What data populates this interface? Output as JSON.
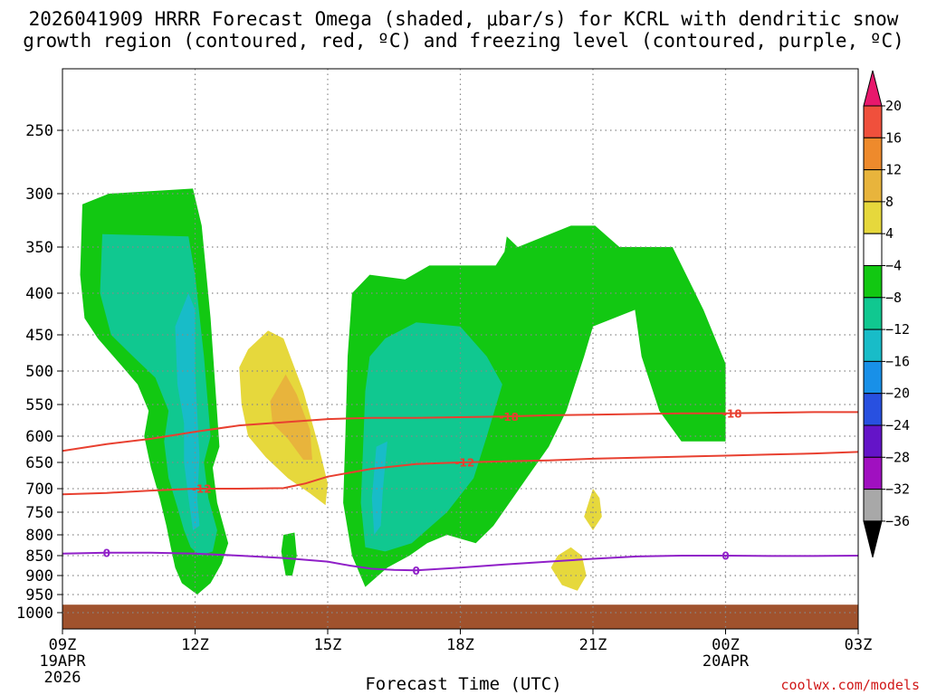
{
  "chart_data": {
    "type": "heatmap",
    "title_line1": "2026041909 HRRR Forecast Omega (shaded, μbar/s) for KCRL with dendritic snow",
    "title_line2": "growth region (contoured, red, ºC) and freezing level (contoured, purple, ºC)",
    "xlabel": "Forecast Time (UTC)",
    "credit": "coolwx.com/models",
    "x_range_hours": [
      0,
      18
    ],
    "y_range_hpa": [
      1000,
      200
    ],
    "x_ticks": [
      {
        "hour": 0,
        "label": "09Z",
        "sub1": "19APR",
        "sub2": "2026"
      },
      {
        "hour": 3,
        "label": "12Z",
        "sub1": "",
        "sub2": ""
      },
      {
        "hour": 6,
        "label": "15Z",
        "sub1": "",
        "sub2": ""
      },
      {
        "hour": 9,
        "label": "18Z",
        "sub1": "",
        "sub2": ""
      },
      {
        "hour": 12,
        "label": "21Z",
        "sub1": "",
        "sub2": ""
      },
      {
        "hour": 15,
        "label": "00Z",
        "sub1": "20APR",
        "sub2": ""
      },
      {
        "hour": 18,
        "label": "03Z",
        "sub1": "",
        "sub2": ""
      }
    ],
    "y_ticks": [
      250,
      300,
      350,
      400,
      450,
      500,
      550,
      600,
      650,
      700,
      750,
      800,
      850,
      900,
      950,
      1000
    ],
    "colorbar": {
      "levels": [
        {
          "label": "20",
          "color": "#e8186c"
        },
        {
          "label": "16",
          "color": "#f0503c"
        },
        {
          "label": "12",
          "color": "#ee8a2c"
        },
        {
          "label": "8",
          "color": "#e8b43c"
        },
        {
          "label": "4",
          "color": "#e6d83c"
        },
        {
          "label": "−4",
          "color": "#ffffff"
        },
        {
          "label": "−8",
          "color": "#12c812"
        },
        {
          "label": "−12",
          "color": "#10c890"
        },
        {
          "label": "−16",
          "color": "#18bcc8"
        },
        {
          "label": "−20",
          "color": "#1890e8"
        },
        {
          "label": "−24",
          "color": "#2850e0"
        },
        {
          "label": "−28",
          "color": "#6414c8"
        },
        {
          "label": "−32",
          "color": "#a010c0"
        },
        {
          "label": "−36",
          "color": "#a8a8a8"
        }
      ],
      "bottom_color": "#000000"
    },
    "omega_regions": [
      {
        "name": "left-green-plume",
        "level": "-4 to -8",
        "color": "#12c812",
        "points": [
          [
            0.45,
            310
          ],
          [
            1.05,
            300
          ],
          [
            2.95,
            296
          ],
          [
            3.15,
            330
          ],
          [
            3.35,
            430
          ],
          [
            3.55,
            620
          ],
          [
            3.4,
            660
          ],
          [
            3.5,
            730
          ],
          [
            3.75,
            820
          ],
          [
            3.6,
            870
          ],
          [
            3.35,
            920
          ],
          [
            3.05,
            950
          ],
          [
            2.7,
            920
          ],
          [
            2.55,
            880
          ],
          [
            2.45,
            830
          ],
          [
            2.35,
            780
          ],
          [
            2.2,
            720
          ],
          [
            2.0,
            660
          ],
          [
            1.85,
            600
          ],
          [
            1.95,
            560
          ],
          [
            1.7,
            520
          ],
          [
            1.3,
            490
          ],
          [
            0.8,
            455
          ],
          [
            0.5,
            430
          ],
          [
            0.4,
            380
          ]
        ]
      },
      {
        "name": "left-cyan-core",
        "level": "-8 to -12",
        "color": "#10c890",
        "points": [
          [
            0.9,
            338
          ],
          [
            2.85,
            340
          ],
          [
            3.0,
            380
          ],
          [
            3.2,
            480
          ],
          [
            3.35,
            600
          ],
          [
            3.2,
            650
          ],
          [
            3.3,
            720
          ],
          [
            3.5,
            790
          ],
          [
            3.4,
            840
          ],
          [
            3.1,
            850
          ],
          [
            2.9,
            830
          ],
          [
            2.75,
            790
          ],
          [
            2.6,
            740
          ],
          [
            2.4,
            680
          ],
          [
            2.3,
            610
          ],
          [
            2.4,
            560
          ],
          [
            2.1,
            510
          ],
          [
            1.6,
            480
          ],
          [
            1.1,
            450
          ],
          [
            0.85,
            400
          ]
        ]
      },
      {
        "name": "left-blue-streak",
        "level": "-12 to -16",
        "color": "#18bcc8",
        "points": [
          [
            2.55,
            440
          ],
          [
            2.85,
            400
          ],
          [
            3.0,
            420
          ],
          [
            3.0,
            500
          ],
          [
            3.1,
            640
          ],
          [
            3.05,
            720
          ],
          [
            3.1,
            780
          ],
          [
            2.95,
            790
          ],
          [
            2.85,
            720
          ],
          [
            2.75,
            650
          ],
          [
            2.75,
            580
          ],
          [
            2.6,
            520
          ]
        ]
      },
      {
        "name": "small-green-blob",
        "level": "-4 to -8",
        "color": "#12c812",
        "points": [
          [
            5.0,
            800
          ],
          [
            5.25,
            795
          ],
          [
            5.3,
            850
          ],
          [
            5.2,
            900
          ],
          [
            5.05,
            900
          ],
          [
            4.95,
            840
          ]
        ]
      },
      {
        "name": "yellow-blob",
        "level": "4 to 8",
        "color": "#e6d83c",
        "points": [
          [
            4.0,
            495
          ],
          [
            4.2,
            470
          ],
          [
            4.65,
            445
          ],
          [
            5.0,
            455
          ],
          [
            5.45,
            530
          ],
          [
            5.8,
            620
          ],
          [
            6.0,
            690
          ],
          [
            5.95,
            735
          ],
          [
            5.6,
            710
          ],
          [
            5.1,
            680
          ],
          [
            4.6,
            640
          ],
          [
            4.2,
            600
          ],
          [
            4.05,
            550
          ]
        ]
      },
      {
        "name": "orange-core",
        "level": "8 to 12",
        "color": "#e8b43c",
        "points": [
          [
            4.7,
            545
          ],
          [
            5.05,
            505
          ],
          [
            5.3,
            535
          ],
          [
            5.6,
            590
          ],
          [
            5.65,
            645
          ],
          [
            5.45,
            645
          ],
          [
            5.1,
            605
          ],
          [
            4.75,
            580
          ]
        ]
      },
      {
        "name": "right-green-plume",
        "level": "-4 to -8",
        "color": "#12c812",
        "points": [
          [
            6.55,
            400
          ],
          [
            6.95,
            380
          ],
          [
            7.75,
            385
          ],
          [
            8.3,
            370
          ],
          [
            9.8,
            370
          ],
          [
            10.0,
            355
          ],
          [
            10.05,
            340
          ],
          [
            10.3,
            350
          ],
          [
            11.5,
            330
          ],
          [
            12.05,
            330
          ],
          [
            12.6,
            350
          ],
          [
            13.8,
            350
          ],
          [
            14.5,
            420
          ],
          [
            15.0,
            490
          ],
          [
            15.0,
            610
          ],
          [
            14.0,
            610
          ],
          [
            13.5,
            560
          ],
          [
            13.1,
            480
          ],
          [
            12.95,
            420
          ],
          [
            12.0,
            440
          ],
          [
            11.8,
            480
          ],
          [
            11.4,
            560
          ],
          [
            11.0,
            620
          ],
          [
            10.5,
            680
          ],
          [
            9.75,
            780
          ],
          [
            9.35,
            820
          ],
          [
            8.7,
            800
          ],
          [
            8.25,
            820
          ],
          [
            7.85,
            850
          ],
          [
            7.35,
            880
          ],
          [
            6.85,
            930
          ],
          [
            6.55,
            850
          ],
          [
            6.35,
            730
          ],
          [
            6.4,
            600
          ],
          [
            6.45,
            480
          ]
        ]
      },
      {
        "name": "right-cyan-core",
        "level": "-8 to -12",
        "color": "#10c890",
        "points": [
          [
            6.95,
            480
          ],
          [
            7.3,
            455
          ],
          [
            8.0,
            435
          ],
          [
            9.0,
            440
          ],
          [
            9.6,
            480
          ],
          [
            9.95,
            520
          ],
          [
            9.6,
            600
          ],
          [
            9.3,
            680
          ],
          [
            8.7,
            750
          ],
          [
            7.9,
            820
          ],
          [
            7.3,
            840
          ],
          [
            6.85,
            830
          ],
          [
            6.75,
            730
          ],
          [
            6.8,
            620
          ],
          [
            6.85,
            530
          ]
        ]
      },
      {
        "name": "right-blue-streak",
        "level": "-12 to -16",
        "color": "#18bcc8",
        "points": [
          [
            7.1,
            620
          ],
          [
            7.35,
            610
          ],
          [
            7.25,
            700
          ],
          [
            7.2,
            780
          ],
          [
            7.05,
            800
          ],
          [
            7.0,
            720
          ]
        ]
      },
      {
        "name": "yellow-dot-upper",
        "level": "4 to 8",
        "color": "#e6d83c",
        "points": [
          [
            12.0,
            700
          ],
          [
            12.15,
            720
          ],
          [
            12.2,
            760
          ],
          [
            12.0,
            790
          ],
          [
            11.8,
            760
          ]
        ]
      },
      {
        "name": "yellow-dot-lower",
        "level": "4 to 8",
        "color": "#e6d83c",
        "points": [
          [
            11.2,
            850
          ],
          [
            11.5,
            830
          ],
          [
            11.75,
            850
          ],
          [
            11.85,
            900
          ],
          [
            11.65,
            940
          ],
          [
            11.3,
            925
          ],
          [
            11.05,
            880
          ]
        ]
      }
    ],
    "contours": [
      {
        "name": "-18C",
        "label": "-18",
        "color": "#e84030",
        "points": [
          [
            0,
            628
          ],
          [
            1,
            615
          ],
          [
            2,
            605
          ],
          [
            3,
            593
          ],
          [
            4,
            583
          ],
          [
            5,
            578
          ],
          [
            6,
            573
          ],
          [
            7,
            571
          ],
          [
            8,
            571
          ],
          [
            9,
            570
          ],
          [
            10,
            569
          ],
          [
            11,
            567
          ],
          [
            12,
            566
          ],
          [
            13,
            565
          ],
          [
            14,
            564
          ],
          [
            15,
            564
          ],
          [
            16,
            563
          ],
          [
            17,
            562
          ],
          [
            18,
            562
          ]
        ],
        "label_positions": [
          [
            10.1,
            569
          ],
          [
            15.15,
            564
          ]
        ]
      },
      {
        "name": "-12C",
        "label": "-12",
        "color": "#e84030",
        "points": [
          [
            0,
            712
          ],
          [
            1,
            709
          ],
          [
            2,
            704
          ],
          [
            3,
            700
          ],
          [
            4,
            700
          ],
          [
            5,
            699
          ],
          [
            5.5,
            690
          ],
          [
            6,
            677
          ],
          [
            7,
            662
          ],
          [
            8,
            653
          ],
          [
            9,
            650
          ],
          [
            10,
            648
          ],
          [
            11,
            646
          ],
          [
            12,
            643
          ],
          [
            13,
            641
          ],
          [
            14,
            639
          ],
          [
            15,
            637
          ],
          [
            16,
            635
          ],
          [
            17,
            633
          ],
          [
            18,
            630
          ]
        ],
        "label_positions": [
          [
            3.15,
            700
          ],
          [
            9.1,
            650
          ]
        ]
      },
      {
        "name": "0C",
        "label": "0",
        "color": "#9020c8",
        "points": [
          [
            0,
            845
          ],
          [
            1,
            843
          ],
          [
            2,
            843
          ],
          [
            3,
            845
          ],
          [
            4,
            850
          ],
          [
            5,
            856
          ],
          [
            6,
            865
          ],
          [
            6.5,
            875
          ],
          [
            7,
            883
          ],
          [
            7.5,
            886
          ],
          [
            8,
            887
          ],
          [
            9,
            880
          ],
          [
            10,
            872
          ],
          [
            11,
            865
          ],
          [
            12,
            858
          ],
          [
            13,
            852
          ],
          [
            14,
            850
          ],
          [
            15,
            850
          ],
          [
            16,
            851
          ],
          [
            17,
            851
          ],
          [
            18,
            850
          ]
        ],
        "label_positions": [
          [
            1.0,
            843
          ],
          [
            8.0,
            887
          ],
          [
            15.0,
            850
          ]
        ]
      }
    ],
    "ground": {
      "color": "#a0522d",
      "top_hpa": 978
    }
  }
}
